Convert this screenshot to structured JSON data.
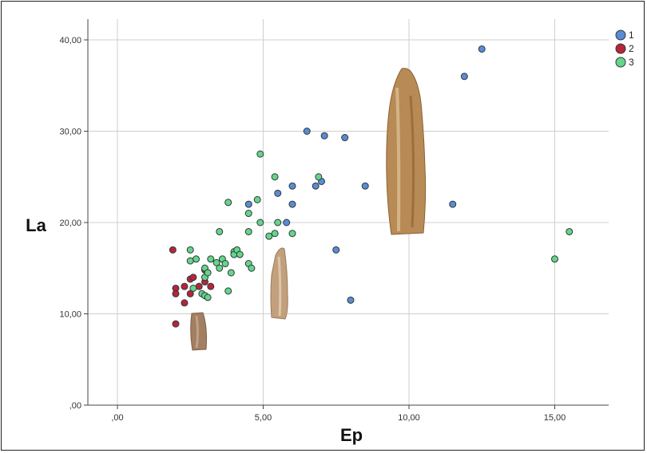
{
  "chart_data": {
    "type": "scatter",
    "xlabel": "Ep",
    "ylabel": "La",
    "xlim": [
      -1,
      17
    ],
    "ylim": [
      0,
      41
    ],
    "xticks": [
      ",00",
      "5,00",
      "10,00",
      "15,00"
    ],
    "yticks": [
      ",00",
      "10,00",
      "20,00",
      "30,00",
      "40,00"
    ],
    "grid": true,
    "legend_placement": "top-right",
    "series": [
      {
        "name": "1",
        "color": "#5b8bd4",
        "points": [
          [
            4.5,
            22
          ],
          [
            5.5,
            23.2
          ],
          [
            5.8,
            20
          ],
          [
            6,
            22
          ],
          [
            6,
            24
          ],
          [
            6.5,
            30
          ],
          [
            6.8,
            24
          ],
          [
            7,
            24.5
          ],
          [
            7.1,
            29.5
          ],
          [
            7.5,
            17
          ],
          [
            7.8,
            29.3
          ],
          [
            8,
            11.5
          ],
          [
            8.5,
            24
          ],
          [
            11.5,
            22
          ],
          [
            11.9,
            36
          ],
          [
            12.5,
            39
          ]
        ]
      },
      {
        "name": "2",
        "color": "#b8243a",
        "points": [
          [
            1.9,
            17
          ],
          [
            2,
            12.8
          ],
          [
            2,
            12.2
          ],
          [
            2,
            8.9
          ],
          [
            2.3,
            13
          ],
          [
            2.3,
            11.2
          ],
          [
            2.5,
            13.8
          ],
          [
            2.5,
            12.2
          ],
          [
            2.6,
            14
          ],
          [
            2.8,
            13
          ],
          [
            3,
            14.8
          ],
          [
            3,
            13.5
          ],
          [
            3.2,
            13
          ]
        ]
      },
      {
        "name": "3",
        "color": "#67d48a",
        "points": [
          [
            2.5,
            17
          ],
          [
            2.5,
            15.8
          ],
          [
            2.6,
            12.8
          ],
          [
            2.7,
            16
          ],
          [
            2.9,
            12.2
          ],
          [
            3,
            15
          ],
          [
            3,
            14
          ],
          [
            3,
            12
          ],
          [
            3.1,
            14.5
          ],
          [
            3.1,
            11.8
          ],
          [
            3.2,
            16
          ],
          [
            3.4,
            15.6
          ],
          [
            3.5,
            19
          ],
          [
            3.5,
            15
          ],
          [
            3.6,
            16
          ],
          [
            3.7,
            15.5
          ],
          [
            3.8,
            22.2
          ],
          [
            3.8,
            12.5
          ],
          [
            3.9,
            14.5
          ],
          [
            4,
            16.8
          ],
          [
            4,
            16.5
          ],
          [
            4.1,
            17
          ],
          [
            4.2,
            16.5
          ],
          [
            4.5,
            21
          ],
          [
            4.5,
            19
          ],
          [
            4.5,
            15.5
          ],
          [
            4.6,
            15
          ],
          [
            4.8,
            22.5
          ],
          [
            4.9,
            27.5
          ],
          [
            4.9,
            20
          ],
          [
            5.2,
            18.5
          ],
          [
            5.4,
            25
          ],
          [
            5.4,
            18.8
          ],
          [
            5.5,
            20
          ],
          [
            6,
            18.8
          ],
          [
            6.9,
            25
          ],
          [
            15,
            16
          ],
          [
            15.5,
            19
          ]
        ]
      }
    ]
  }
}
